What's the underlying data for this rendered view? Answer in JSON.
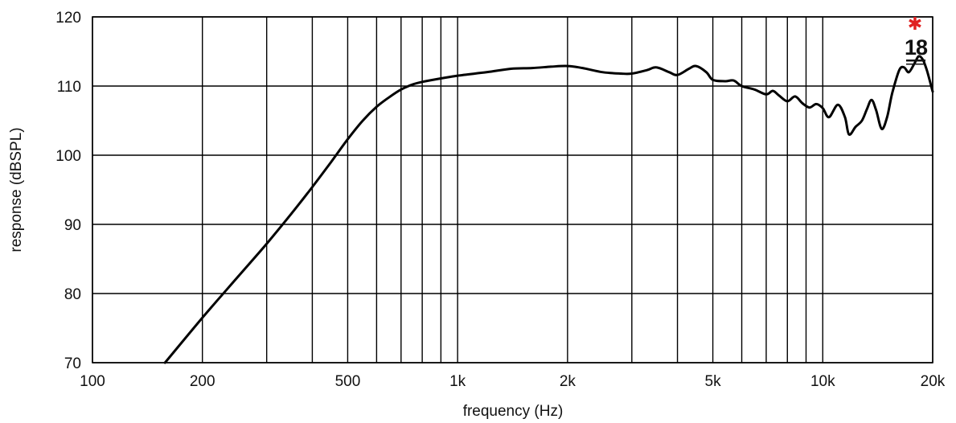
{
  "chart_data": {
    "type": "line",
    "title": "",
    "xlabel": "frequency (Hz)",
    "ylabel": "response (dBSPL)",
    "xscale": "log",
    "xlim": [
      100,
      20000
    ],
    "ylim": [
      70,
      120
    ],
    "grid": true,
    "x_ticks": [
      100,
      200,
      500,
      1000,
      2000,
      5000,
      10000,
      20000
    ],
    "x_tick_labels": [
      "100",
      "200",
      "500",
      "1k",
      "2k",
      "5k",
      "10k",
      "20k"
    ],
    "x_minor_grid": [
      300,
      400,
      600,
      700,
      800,
      900,
      3000,
      4000,
      6000,
      7000,
      8000,
      9000
    ],
    "y_ticks": [
      70,
      80,
      90,
      100,
      110,
      120
    ],
    "y_tick_labels": [
      "70",
      "80",
      "90",
      "100",
      "110",
      "120"
    ],
    "series": [
      {
        "color": "#000000",
        "points": [
          [
            158,
            70.0
          ],
          [
            200,
            76.5
          ],
          [
            250,
            82.4
          ],
          [
            300,
            87.2
          ],
          [
            350,
            91.5
          ],
          [
            400,
            95.4
          ],
          [
            450,
            99.0
          ],
          [
            500,
            102.3
          ],
          [
            550,
            105.0
          ],
          [
            600,
            107.0
          ],
          [
            650,
            108.4
          ],
          [
            700,
            109.5
          ],
          [
            750,
            110.2
          ],
          [
            800,
            110.6
          ],
          [
            900,
            111.1
          ],
          [
            1000,
            111.5
          ],
          [
            1200,
            112.0
          ],
          [
            1400,
            112.5
          ],
          [
            1600,
            112.6
          ],
          [
            1800,
            112.8
          ],
          [
            2000,
            112.9
          ],
          [
            2200,
            112.6
          ],
          [
            2500,
            112.0
          ],
          [
            2800,
            111.8
          ],
          [
            3000,
            111.8
          ],
          [
            3300,
            112.3
          ],
          [
            3500,
            112.7
          ],
          [
            3800,
            112.0
          ],
          [
            4000,
            111.6
          ],
          [
            4300,
            112.5
          ],
          [
            4500,
            112.9
          ],
          [
            4800,
            112.0
          ],
          [
            5000,
            110.9
          ],
          [
            5400,
            110.7
          ],
          [
            5700,
            110.8
          ],
          [
            6000,
            110.0
          ],
          [
            6500,
            109.5
          ],
          [
            7000,
            108.8
          ],
          [
            7300,
            109.3
          ],
          [
            7600,
            108.6
          ],
          [
            8000,
            107.8
          ],
          [
            8400,
            108.5
          ],
          [
            8800,
            107.5
          ],
          [
            9200,
            106.9
          ],
          [
            9600,
            107.4
          ],
          [
            10000,
            106.8
          ],
          [
            10400,
            105.5
          ],
          [
            11000,
            107.3
          ],
          [
            11500,
            105.5
          ],
          [
            11800,
            103.0
          ],
          [
            12300,
            104.1
          ],
          [
            12800,
            105.0
          ],
          [
            13200,
            106.6
          ],
          [
            13600,
            108.0
          ],
          [
            14000,
            106.5
          ],
          [
            14500,
            103.8
          ],
          [
            15000,
            105.5
          ],
          [
            15500,
            109.0
          ],
          [
            16200,
            112.3
          ],
          [
            16700,
            112.7
          ],
          [
            17200,
            112.0
          ],
          [
            17800,
            113.2
          ],
          [
            18300,
            114.3
          ],
          [
            18800,
            113.8
          ],
          [
            19300,
            112.2
          ],
          [
            20000,
            109.2
          ]
        ]
      }
    ]
  },
  "logo": {
    "text": "18",
    "star_color": "#e02020"
  }
}
